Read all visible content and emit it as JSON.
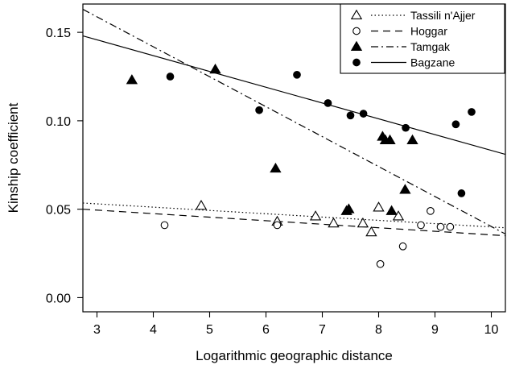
{
  "chart_data": {
    "type": "scatter",
    "xlabel": "Logarithmic geographic distance",
    "ylabel": "Kinship coefficient",
    "xlim": [
      2.75,
      10.25
    ],
    "ylim": [
      -0.008,
      0.166
    ],
    "xticks": [
      3,
      4,
      5,
      6,
      7,
      8,
      9,
      10
    ],
    "yticks": [
      0.0,
      0.05,
      0.1,
      0.15
    ],
    "ytick_labels": [
      "0.00",
      "0.05",
      "0.10",
      "0.15"
    ],
    "grid": false,
    "legend_position": "top-right",
    "series": [
      {
        "name": "Tassili n'Ajjer",
        "marker": "triangle-open",
        "line_style": "dotted",
        "points": [
          [
            4.85,
            0.052
          ],
          [
            6.2,
            0.043
          ],
          [
            6.88,
            0.046
          ],
          [
            7.2,
            0.042
          ],
          [
            7.72,
            0.042
          ],
          [
            7.87,
            0.037
          ],
          [
            8.0,
            0.051
          ],
          [
            8.35,
            0.046
          ]
        ],
        "fit": [
          [
            2.75,
            0.0535
          ],
          [
            10.25,
            0.0395
          ]
        ]
      },
      {
        "name": "Hoggar",
        "marker": "circle-open",
        "line_style": "dashed",
        "points": [
          [
            4.2,
            0.041
          ],
          [
            6.2,
            0.041
          ],
          [
            8.03,
            0.019
          ],
          [
            8.43,
            0.029
          ],
          [
            8.75,
            0.041
          ],
          [
            8.92,
            0.049
          ],
          [
            9.1,
            0.04
          ],
          [
            9.27,
            0.04
          ]
        ],
        "fit": [
          [
            2.75,
            0.05
          ],
          [
            10.25,
            0.035
          ]
        ]
      },
      {
        "name": "Tamgak",
        "marker": "triangle-filled",
        "line_style": "dash-dot",
        "points": [
          [
            3.62,
            0.123
          ],
          [
            5.1,
            0.129
          ],
          [
            6.17,
            0.073
          ],
          [
            7.43,
            0.049
          ],
          [
            7.47,
            0.05
          ],
          [
            8.07,
            0.091
          ],
          [
            8.12,
            0.089
          ],
          [
            8.2,
            0.089
          ],
          [
            8.6,
            0.089
          ],
          [
            8.23,
            0.049
          ],
          [
            8.47,
            0.061
          ]
        ],
        "fit": [
          [
            2.75,
            0.163
          ],
          [
            10.25,
            0.036
          ]
        ]
      },
      {
        "name": "Bagzane",
        "marker": "circle-filled",
        "line_style": "solid",
        "points": [
          [
            4.3,
            0.125
          ],
          [
            5.88,
            0.106
          ],
          [
            6.55,
            0.126
          ],
          [
            7.1,
            0.11
          ],
          [
            7.5,
            0.103
          ],
          [
            7.73,
            0.104
          ],
          [
            8.48,
            0.096
          ],
          [
            9.37,
            0.098
          ],
          [
            9.65,
            0.105
          ],
          [
            9.47,
            0.059
          ]
        ],
        "fit": [
          [
            2.75,
            0.148
          ],
          [
            10.25,
            0.081
          ]
        ]
      }
    ]
  }
}
